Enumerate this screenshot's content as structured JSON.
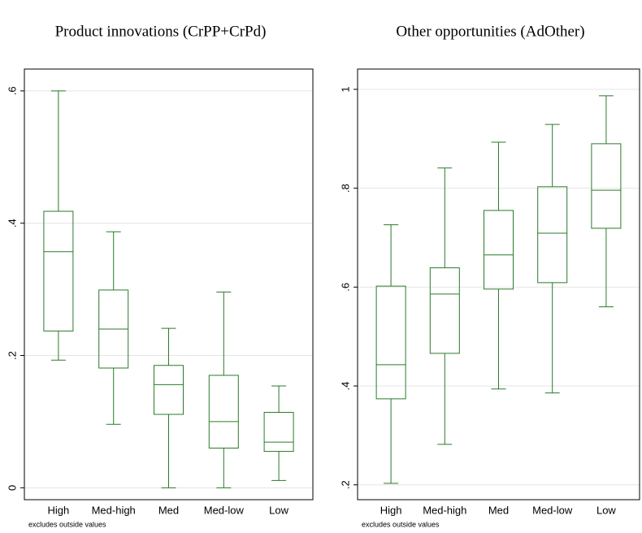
{
  "chart_data": [
    {
      "type": "box",
      "title": "Product innovations (CrPP+CrPd)",
      "note": "excludes outside values",
      "categories": [
        "High",
        "Med-high",
        "Med",
        "Med-low",
        "Low"
      ],
      "whisker_low": [
        0.193,
        0.096,
        0,
        0,
        0.011
      ],
      "q1": [
        0.237,
        0.181,
        0.111,
        0.06,
        0.055
      ],
      "median": [
        0.357,
        0.24,
        0.156,
        0.1,
        0.069
      ],
      "q3": [
        0.418,
        0.299,
        0.185,
        0.17,
        0.114
      ],
      "whisker_high": [
        0.6,
        0.387,
        0.241,
        0.296,
        0.154
      ],
      "color": "#2a7a2a",
      "ylim": [
        -0.018,
        0.633
      ],
      "yticks": [
        0,
        {
          "value": 0.2,
          "label": ".2"
        },
        {
          "value": 0.4,
          "label": ".4"
        },
        {
          "value": 0.6,
          "label": ".6"
        }
      ],
      "grid": true
    },
    {
      "type": "box",
      "title": "Other opportunities (AdOther)",
      "note": "excludes outside values",
      "categories": [
        "High",
        "Med-high",
        "Med",
        "Med-low",
        "Low"
      ],
      "whisker_low": [
        0.203,
        0.282,
        0.394,
        0.386,
        0.56
      ],
      "q1": [
        0.374,
        0.466,
        0.596,
        0.609,
        0.719
      ],
      "median": [
        0.443,
        0.586,
        0.665,
        0.709,
        0.796
      ],
      "q3": [
        0.602,
        0.639,
        0.755,
        0.803,
        0.89
      ],
      "whisker_high": [
        0.726,
        0.841,
        0.893,
        0.929,
        0.987
      ],
      "color": "#2a7a2a",
      "ylim": [
        0.17,
        1.041
      ],
      "yticks": [
        {
          "value": 0.2,
          "label": ".2"
        },
        {
          "value": 0.4,
          "label": ".4"
        },
        {
          "value": 0.6,
          "label": ".6"
        },
        {
          "value": 0.8,
          "label": ".8"
        },
        {
          "value": 1,
          "label": "1"
        }
      ],
      "grid": true
    }
  ]
}
